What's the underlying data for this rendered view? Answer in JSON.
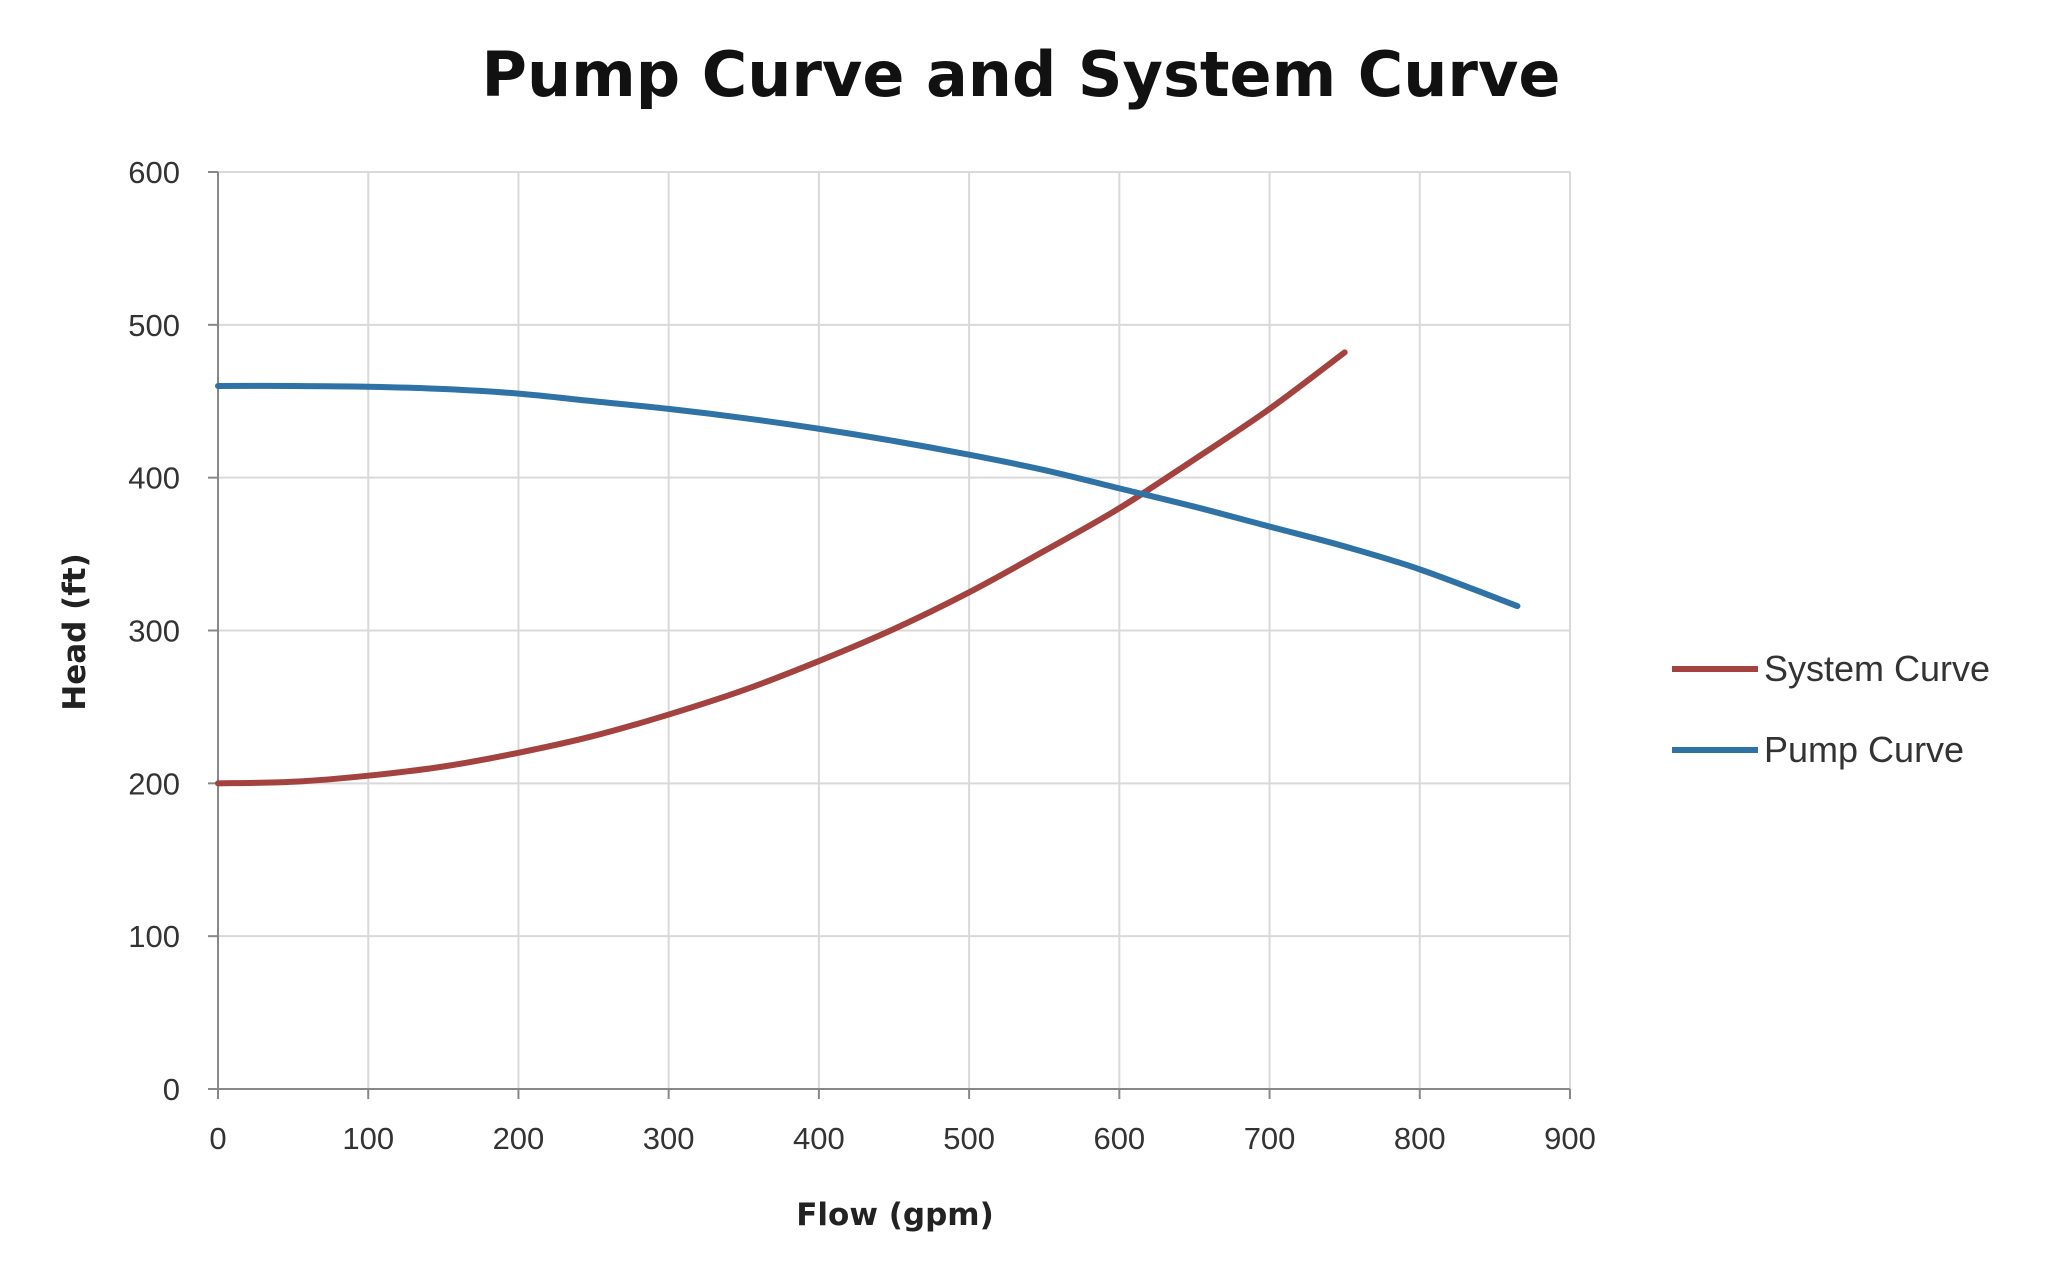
{
  "chart_data": {
    "type": "line",
    "title": "Pump Curve and System Curve",
    "xlabel": "Flow (gpm)",
    "ylabel": "Head (ft)",
    "xlim": [
      0,
      900
    ],
    "ylim": [
      0,
      600
    ],
    "xticks": [
      "0",
      "100",
      "200",
      "300",
      "400",
      "500",
      "600",
      "700",
      "800",
      "900"
    ],
    "yticks": [
      "0",
      "100",
      "200",
      "300",
      "400",
      "500",
      "600"
    ],
    "grid": true,
    "legend_position": "right",
    "series": [
      {
        "name": "System Curve",
        "color": "#A3423E",
        "x": [
          0,
          50,
          100,
          150,
          200,
          250,
          300,
          350,
          400,
          450,
          500,
          550,
          600,
          650,
          700,
          750
        ],
        "y": [
          200,
          201,
          205,
          211,
          220,
          231,
          245,
          261,
          280,
          301,
          325,
          352,
          380,
          412,
          445,
          482
        ]
      },
      {
        "name": "Pump Curve",
        "color": "#2F72A6",
        "x": [
          0,
          50,
          100,
          150,
          200,
          250,
          300,
          350,
          400,
          450,
          500,
          550,
          600,
          650,
          700,
          750,
          800,
          865
        ],
        "y": [
          460,
          460,
          459.5,
          458,
          455,
          450,
          445,
          439,
          432,
          424,
          415,
          405,
          393,
          381,
          368,
          355,
          340,
          316
        ]
      }
    ]
  }
}
